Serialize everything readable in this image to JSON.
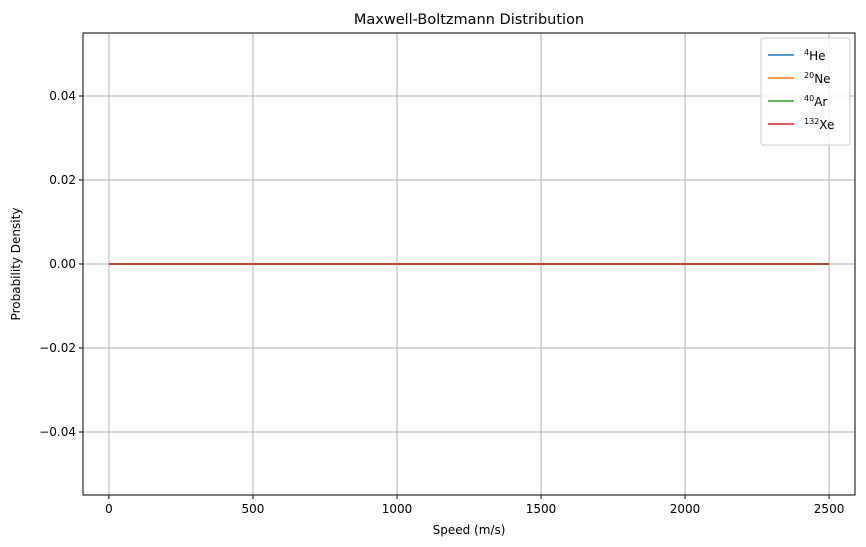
{
  "chart_data": {
    "type": "line",
    "title": "Maxwell-Boltzmann Distribution",
    "xlabel": "Speed (m/s)",
    "ylabel": "Probability Density",
    "xlim": [
      -90,
      2590
    ],
    "ylim": [
      -0.055,
      0.055
    ],
    "xticks": [
      0,
      500,
      1000,
      1500,
      2000,
      2500
    ],
    "xtick_labels": [
      "0",
      "500",
      "1000",
      "1500",
      "2000",
      "2500"
    ],
    "yticks": [
      -0.04,
      -0.02,
      0.0,
      0.02,
      0.04
    ],
    "ytick_labels": [
      "−0.04",
      "−0.02",
      "0.00",
      "0.02",
      "0.04"
    ],
    "grid": true,
    "legend_position": "top-right",
    "series": [
      {
        "name_sup": "4",
        "name_base": "He",
        "color": "#1f77b4",
        "x": [
          0,
          2500
        ],
        "y": [
          0,
          0
        ]
      },
      {
        "name_sup": "20",
        "name_base": "Ne",
        "color": "#ff7f0e",
        "x": [
          0,
          2500
        ],
        "y": [
          0,
          0
        ]
      },
      {
        "name_sup": "40",
        "name_base": "Ar",
        "color": "#2ca02c",
        "x": [
          0,
          2500
        ],
        "y": [
          0,
          0
        ]
      },
      {
        "name_sup": "132",
        "name_base": "Xe",
        "color": "#d62728",
        "x": [
          0,
          2500
        ],
        "y": [
          0,
          0
        ]
      }
    ]
  }
}
